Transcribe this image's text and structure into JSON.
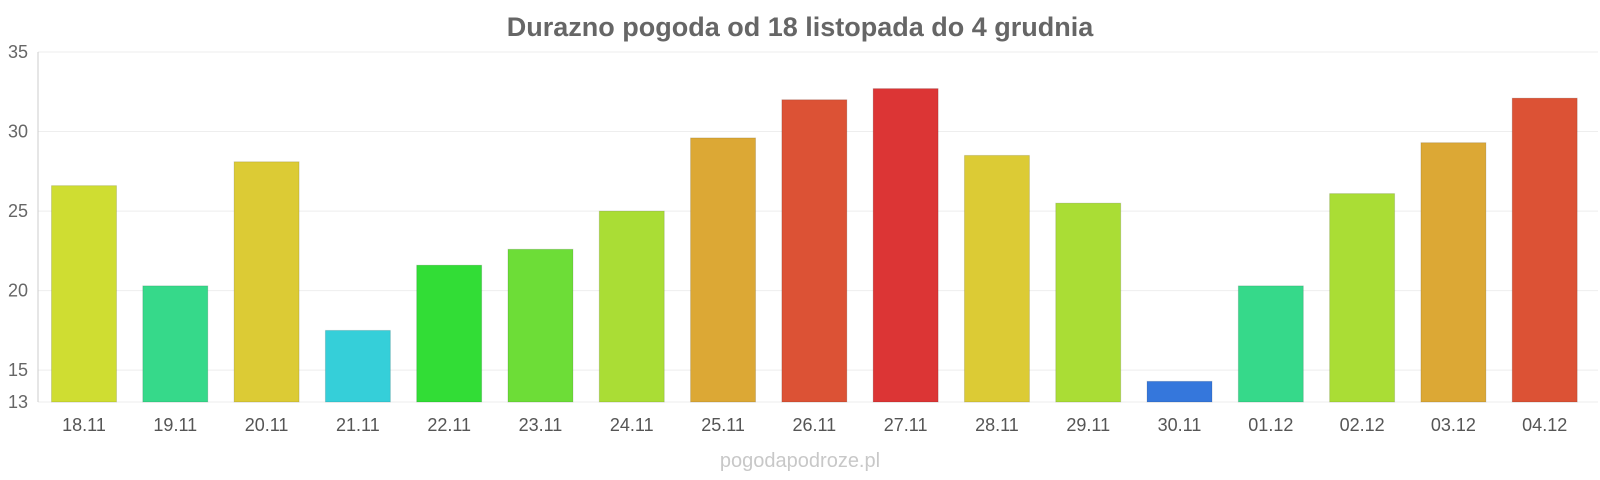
{
  "chart_data": {
    "type": "bar",
    "title": "Durazno pogoda od 18 listopada do 4 grudnia",
    "categories": [
      "18.11",
      "19.11",
      "20.11",
      "21.11",
      "22.11",
      "23.11",
      "24.11",
      "25.11",
      "26.11",
      "27.11",
      "28.11",
      "29.11",
      "30.11",
      "01.12",
      "02.12",
      "03.12",
      "04.12"
    ],
    "values": [
      26.6,
      20.3,
      28.1,
      17.5,
      21.6,
      22.6,
      25.0,
      29.6,
      32.0,
      32.7,
      28.5,
      25.5,
      14.3,
      20.3,
      26.1,
      29.3,
      32.1
    ],
    "colors": [
      "#cfdd32",
      "#36d98a",
      "#dccb35",
      "#35cfd9",
      "#32dd36",
      "#6ddd37",
      "#aadd35",
      "#dca835",
      "#dc5235",
      "#dc3535",
      "#dccb35",
      "#aadd35",
      "#3577dc",
      "#36d98a",
      "#aadd35",
      "#dca835",
      "#dc5235"
    ],
    "yticks": [
      13,
      15,
      20,
      25,
      30,
      35
    ],
    "ylim": [
      13,
      35
    ],
    "xlabel": "",
    "ylabel": "",
    "grid": true
  },
  "footer": {
    "source": "pogodapodroze.pl"
  }
}
